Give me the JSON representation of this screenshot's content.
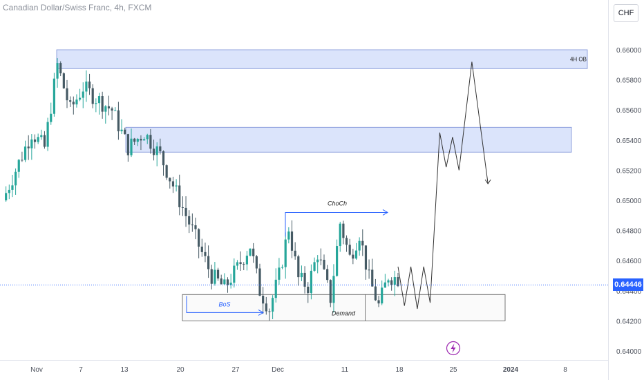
{
  "header": {
    "title": "Canadian Dollar/Swiss Franc, 4h, FXCM",
    "currency_button": "CHF"
  },
  "current_price": "0.64446",
  "colors": {
    "up": "#26a69a",
    "down": "#455a64",
    "zone_fill": "#dbe4fb",
    "zone_stroke": "#7b8fd6",
    "arrow": "#2962ff",
    "event_icon": "#9c27b0"
  },
  "chart_data": {
    "type": "candlestick",
    "instrument": "CADCHF",
    "timeframe": "4h",
    "y_axis": {
      "range": [
        0.6395,
        0.6612
      ],
      "ticks": [
        "0.66000",
        "0.65800",
        "0.65600",
        "0.65400",
        "0.65200",
        "0.65000",
        "0.64800",
        "0.64600",
        "0.64400",
        "0.64200",
        "0.64000"
      ]
    },
    "x_axis": {
      "ticks": [
        "Nov",
        "7",
        "13",
        "20",
        "27",
        "Dec",
        "11",
        "18",
        "25",
        "2024",
        "8"
      ]
    },
    "price_path": [
      [
        0,
        0.65
      ],
      [
        4,
        0.652
      ],
      [
        9,
        0.6545
      ],
      [
        13,
        0.6535
      ],
      [
        17,
        0.659
      ],
      [
        21,
        0.656
      ],
      [
        25,
        0.6575
      ],
      [
        29,
        0.6568
      ],
      [
        34,
        0.656
      ],
      [
        39,
        0.6535
      ],
      [
        44,
        0.6545
      ],
      [
        49,
        0.653
      ],
      [
        53,
        0.651
      ],
      [
        57,
        0.649
      ],
      [
        61,
        0.647
      ],
      [
        65,
        0.645
      ],
      [
        69,
        0.6442
      ],
      [
        73,
        0.6455
      ],
      [
        77,
        0.647
      ],
      [
        80,
        0.644
      ],
      [
        83,
        0.6428
      ],
      [
        86,
        0.645
      ],
      [
        89,
        0.6482
      ],
      [
        92,
        0.6448
      ],
      [
        95,
        0.6443
      ],
      [
        98,
        0.6465
      ],
      [
        102,
        0.6435
      ],
      [
        105,
        0.6485
      ],
      [
        108,
        0.6462
      ],
      [
        111,
        0.6478
      ],
      [
        114,
        0.6448
      ],
      [
        117,
        0.643
      ],
      [
        120,
        0.645
      ],
      [
        123,
        0.6448
      ]
    ],
    "projection": [
      [
        123,
        0.6456
      ],
      [
        125,
        0.643
      ],
      [
        127,
        0.6456
      ],
      [
        129,
        0.6428
      ],
      [
        131,
        0.6456
      ],
      [
        133,
        0.6432
      ],
      [
        136,
        0.6545
      ],
      [
        138,
        0.6522
      ],
      [
        140,
        0.6542
      ],
      [
        142,
        0.652
      ],
      [
        146,
        0.6592
      ],
      [
        151,
        0.6511
      ]
    ],
    "zones": [
      {
        "label": "4H OB",
        "price_top": 0.66,
        "price_bottom": 0.65875
      },
      {
        "label": "",
        "price_top": 0.65485,
        "price_bottom": 0.6532
      },
      {
        "label": "",
        "price_top": 0.64375,
        "price_bottom": 0.642
      }
    ],
    "annotations": [
      {
        "label": "BoS",
        "price": 0.64255
      },
      {
        "label": "ChoCh",
        "price": 0.6492
      },
      {
        "label": "Demand",
        "price": 0.6425
      }
    ]
  }
}
